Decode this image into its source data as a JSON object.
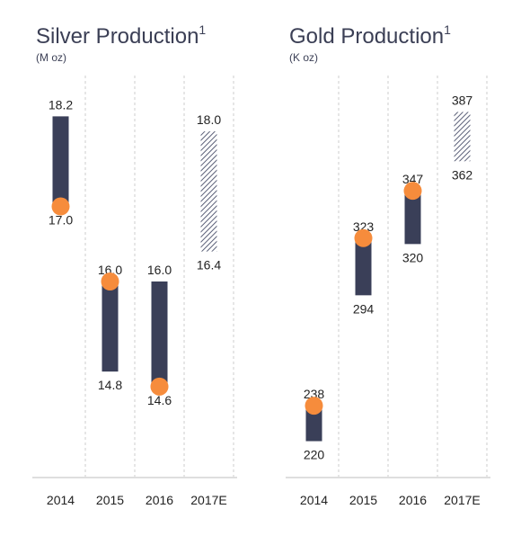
{
  "colors": {
    "bar": "#3a3f58",
    "marker": "#f68c3c",
    "hatch": "#5b6078",
    "grid": "#cccccc",
    "axis": "#bdbdbd",
    "text": "#222222"
  },
  "chart_data": [
    {
      "type": "bar",
      "title": "Silver Production",
      "title_superscript": "1",
      "subtitle": "(M oz)",
      "categories": [
        "2014",
        "2015",
        "2016",
        "2017E"
      ],
      "ranges": [
        {
          "high": 18.2,
          "low": 17.0,
          "high_label": "18.2",
          "low_label": "17.0",
          "marker": 17.0,
          "estimate": false
        },
        {
          "high": 16.0,
          "low": 14.8,
          "high_label": "16.0",
          "low_label": "14.8",
          "marker": 16.0,
          "estimate": false
        },
        {
          "high": 16.0,
          "low": 14.6,
          "high_label": "16.0",
          "low_label": "14.6",
          "marker": 14.6,
          "estimate": false
        },
        {
          "high": 18.0,
          "low": 16.4,
          "high_label": "18.0",
          "low_label": "16.4",
          "marker": null,
          "estimate": true
        }
      ],
      "ylim": [
        13.4,
        18.6
      ],
      "grid": "vertical dashed"
    },
    {
      "type": "bar",
      "title": "Gold Production",
      "title_superscript": "1",
      "subtitle": "(K oz)",
      "categories": [
        "2014",
        "2015",
        "2016",
        "2017E"
      ],
      "ranges": [
        {
          "high": 238,
          "low": 220,
          "high_label": "238",
          "low_label": "220",
          "marker": 238,
          "estimate": false
        },
        {
          "high": 323,
          "low": 294,
          "high_label": "323",
          "low_label": "294",
          "marker": 323,
          "estimate": false
        },
        {
          "high": 347,
          "low": 320,
          "high_label": "347",
          "low_label": "320",
          "marker": 347,
          "estimate": false
        },
        {
          "high": 387,
          "low": 362,
          "high_label": "387",
          "low_label": "362",
          "marker": null,
          "estimate": true
        }
      ],
      "ylim": [
        202,
        400
      ],
      "grid": "vertical dashed"
    }
  ]
}
